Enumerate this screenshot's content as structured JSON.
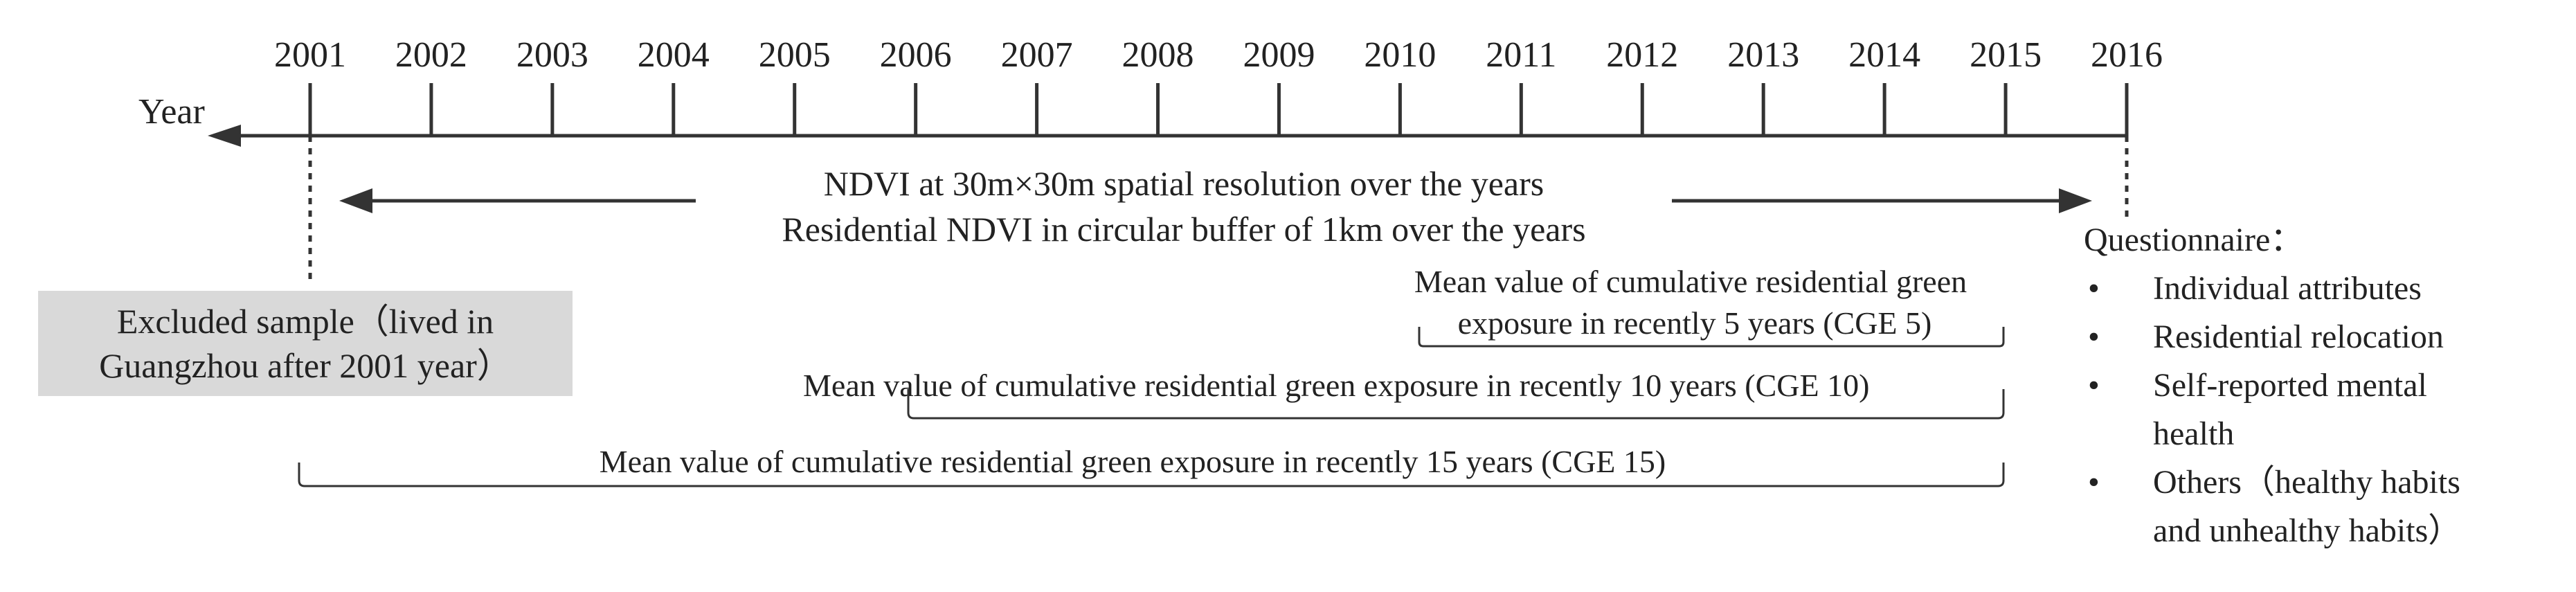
{
  "timeline": {
    "axis_label": "Year",
    "years": [
      "2001",
      "2002",
      "2003",
      "2004",
      "2005",
      "2006",
      "2007",
      "2008",
      "2009",
      "2010",
      "2011",
      "2012",
      "2013",
      "2014",
      "2015",
      "2016"
    ]
  },
  "ndvi": {
    "line1": "NDVI at 30m×30m spatial resolution over the years",
    "line2": "Residential NDVI in circular buffer of 1km over the years"
  },
  "excluded": {
    "line1": "Excluded sample（lived in",
    "line2": "Guangzhou after 2001 year）"
  },
  "cge": {
    "cge5_line1": "Mean value of cumulative residential green",
    "cge5_line2": "exposure in recently 5 years (CGE 5)",
    "cge10": "Mean value of cumulative residential green exposure in recently 10 years (CGE 10)",
    "cge15": "Mean value of cumulative residential green exposure in recently 15 years (CGE 15)"
  },
  "questionnaire": {
    "title": "Questionnaire：",
    "bullet": "•",
    "items": [
      {
        "line1": "Individual attributes",
        "line2": ""
      },
      {
        "line1": "Residential relocation",
        "line2": ""
      },
      {
        "line1": "Self-reported mental",
        "line2": "health"
      },
      {
        "line1": "Others（healthy habits",
        "line2": "and unhealthy habits）"
      }
    ]
  }
}
